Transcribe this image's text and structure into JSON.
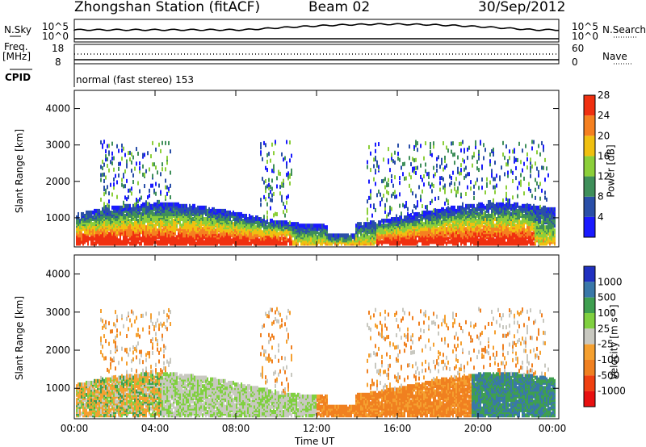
{
  "header": {
    "station": "Zhongshan Station (fitACF)",
    "beam": "Beam 02",
    "date": "30/Sep/2012"
  },
  "status_panel": {
    "nsky_label": "N.Sky",
    "nsearch_label": "N.Search",
    "freq_label": "Freq.",
    "freq_unit": "[MHz]",
    "nave_label": "Nave",
    "cpid_label": "CPID",
    "cpid_text": "normal (fast stereo) 153",
    "noise_ticks": [
      "10^5",
      "10^0"
    ],
    "freq_ticks_left": [
      "18",
      "8"
    ],
    "freq_ticks_right": [
      "60",
      "0"
    ]
  },
  "chart_data": [
    {
      "type": "heatmap",
      "name": "power",
      "ylabel": "Slant Range [km]",
      "xlabel": "Time UT",
      "ylim": [
        200,
        4500
      ],
      "yticks": [
        "1000",
        "2000",
        "3000",
        "4000"
      ],
      "xticks": [
        "00:00",
        "04:00",
        "08:00",
        "12:00",
        "16:00",
        "20:00",
        "00:00"
      ],
      "colorbar_label": "Power [dB]",
      "colorbar_ticks": [
        "4",
        "8",
        "12",
        "16",
        "20",
        "24",
        "28"
      ],
      "colors": [
        "#1a1aff",
        "#2a4fa8",
        "#3f8f5a",
        "#8ccf3a",
        "#f0c010",
        "#f58020",
        "#f03010"
      ]
    },
    {
      "type": "heatmap",
      "name": "velocity",
      "ylabel": "Slant Range [km]",
      "xlabel": "Time UT",
      "ylim": [
        200,
        4500
      ],
      "yticks": [
        "1000",
        "2000",
        "3000",
        "4000"
      ],
      "xticks": [
        "00:00",
        "04:00",
        "08:00",
        "12:00",
        "16:00",
        "20:00",
        "00:00"
      ],
      "colorbar_label": "Velocity [m s⁻¹]",
      "colorbar_ticks": [
        "1000",
        "500",
        "100",
        "25",
        "-25",
        "-100",
        "-500",
        "-1000"
      ],
      "colors": [
        "#2030c0",
        "#3a78a8",
        "#3f9f50",
        "#80d040",
        "#c8c8c0",
        "#f5a030",
        "#f08020",
        "#f04010",
        "#e81010"
      ]
    }
  ]
}
